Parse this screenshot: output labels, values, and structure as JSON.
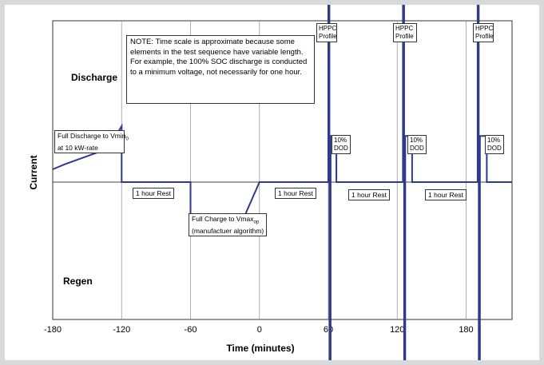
{
  "chart_data": {
    "type": "line",
    "title": "",
    "xlabel": "Time (minutes)",
    "ylabel": "Current",
    "xlim": [
      -180,
      220
    ],
    "x_ticks": [
      "-180",
      "-120",
      "-60",
      "0",
      "60",
      "120",
      "180"
    ],
    "x_tick_values": [
      -180,
      -120,
      -60,
      0,
      60,
      120,
      180
    ],
    "grid": "vertical",
    "region_labels": {
      "top": "Discharge",
      "bottom": "Regen"
    },
    "series": [
      {
        "type": "line",
        "color": "#2f3a8a",
        "points": [
          [
            -180,
            0.13
          ],
          [
            -170,
            0.18
          ],
          [
            -132,
            0.34
          ],
          [
            -120,
            0.57
          ],
          [
            -120,
            0
          ],
          [
            -60,
            0
          ],
          [
            -60,
            -0.48
          ],
          [
            -18,
            -0.48
          ],
          [
            0,
            0
          ],
          [
            60,
            0
          ],
          [
            60,
            2.7
          ],
          [
            61,
            2.7
          ],
          [
            61,
            -1.85
          ],
          [
            62,
            -1.85
          ],
          [
            62,
            0
          ],
          [
            62,
            0.47
          ],
          [
            67,
            0.47
          ],
          [
            67,
            0
          ],
          [
            125,
            0
          ],
          [
            125,
            2.6
          ],
          [
            126,
            2.6
          ],
          [
            126,
            -1.85
          ],
          [
            127,
            -1.85
          ],
          [
            127,
            0
          ],
          [
            127,
            0.47
          ],
          [
            133,
            0.47
          ],
          [
            133,
            0
          ],
          [
            190,
            0
          ],
          [
            190,
            2.7
          ],
          [
            191,
            2.7
          ],
          [
            191,
            -1.85
          ],
          [
            192,
            -1.85
          ],
          [
            192,
            0
          ],
          [
            192,
            0.47
          ],
          [
            198,
            0.47
          ],
          [
            198,
            0
          ],
          [
            220,
            0
          ]
        ]
      }
    ],
    "annotations": {
      "note": "NOTE: Time scale is approximate because some elements in the test sequence have variable length.  For example, the 100% SOC discharge is conducted to a minimum voltage, not necessarily for one hour.",
      "full_discharge": {
        "line1": "Full Discharge to Vmin",
        "sub": "0",
        "line2": "at 10 kW-rate"
      },
      "full_charge": {
        "line1": "Full Charge to Vmax",
        "sub": "op",
        "line2": "(manufactuer algorithm)"
      },
      "rests": [
        "1 hour Rest",
        "1 hour Rest",
        "1 hour Rest",
        "1 hour Rest"
      ],
      "hppc": [
        {
          "line1": "HPPC",
          "line2": "Profile"
        },
        {
          "line1": "HPPC",
          "line2": "Profile"
        },
        {
          "line1": "HPPC",
          "line2": "Profile"
        }
      ],
      "dod": [
        {
          "line1": "10%",
          "line2": "DOD"
        },
        {
          "line1": "10%",
          "line2": "DOD"
        },
        {
          "line1": "10%",
          "line2": "DOD"
        }
      ]
    }
  }
}
